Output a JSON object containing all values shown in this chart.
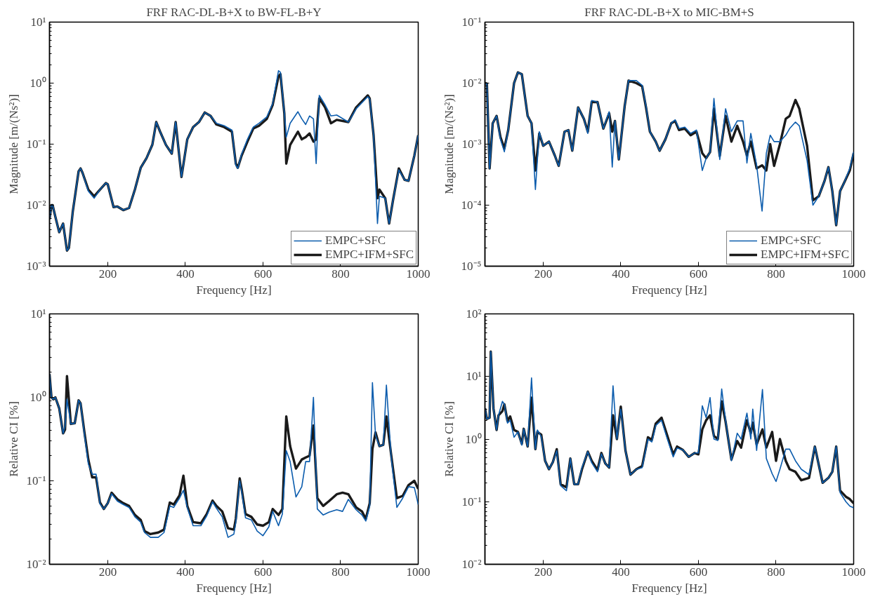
{
  "chart_data": [
    {
      "type": "line",
      "title": "FRF RAC-DL-B+X to BW-FL-B+Y",
      "xlabel": "Frequency [Hz]",
      "ylabel": "Magnitude [m/(Ns²)]",
      "log": "y",
      "legend": "bottom right",
      "xlim": [
        50,
        1000
      ],
      "xticks": [
        200,
        400,
        600,
        800,
        1000
      ],
      "ylim": [
        0.001,
        10
      ],
      "yticks": [
        {
          "value": 0.001,
          "label": "10⁻³"
        },
        {
          "value": 0.01,
          "label": "10⁻²"
        },
        {
          "value": 0.1,
          "label": "10⁻¹"
        },
        {
          "value": 1,
          "label": "10⁰"
        },
        {
          "value": 10,
          "label": "10¹"
        }
      ],
      "x": [
        50,
        55,
        58,
        65,
        75,
        85,
        95,
        100,
        110,
        125,
        130,
        135,
        150,
        165,
        180,
        195,
        200,
        215,
        225,
        240,
        255,
        270,
        285,
        300,
        315,
        325,
        335,
        350,
        365,
        375,
        390,
        405,
        420,
        435,
        450,
        465,
        480,
        500,
        520,
        530,
        535,
        545,
        560,
        575,
        590,
        610,
        625,
        640,
        645,
        655,
        660,
        670,
        690,
        700,
        710,
        720,
        730,
        737,
        745,
        760,
        775,
        790,
        820,
        840,
        870,
        875,
        885,
        895,
        900,
        915,
        925,
        935,
        950,
        965,
        975,
        990,
        1000
      ],
      "series": [
        {
          "name": "EMPC+SFC",
          "color": "#0b5cad",
          "values": [
            0.0059,
            0.01,
            0.01,
            0.0065,
            0.0036,
            0.005,
            0.0018,
            0.002,
            0.0079,
            0.036,
            0.04,
            0.034,
            0.017,
            0.013,
            0.018,
            0.023,
            0.022,
            0.0093,
            0.0095,
            0.0083,
            0.009,
            0.018,
            0.041,
            0.059,
            0.098,
            0.23,
            0.16,
            0.097,
            0.07,
            0.23,
            0.029,
            0.12,
            0.19,
            0.23,
            0.33,
            0.29,
            0.22,
            0.2,
            0.17,
            0.045,
            0.04,
            0.068,
            0.12,
            0.19,
            0.22,
            0.28,
            0.46,
            1.6,
            1.5,
            0.33,
            0.13,
            0.22,
            0.34,
            0.26,
            0.21,
            0.29,
            0.26,
            0.048,
            0.63,
            0.44,
            0.29,
            0.3,
            0.23,
            0.38,
            0.6,
            0.55,
            0.14,
            0.005,
            0.014,
            0.013,
            0.005,
            0.012,
            0.038,
            0.026,
            0.025,
            0.065,
            0.14
          ]
        },
        {
          "name": "EMPC+IFM+SFC",
          "color": "#1a1a1a",
          "values": [
            0.0059,
            0.01,
            0.01,
            0.0065,
            0.0036,
            0.005,
            0.0018,
            0.002,
            0.0079,
            0.036,
            0.04,
            0.034,
            0.018,
            0.014,
            0.018,
            0.023,
            0.022,
            0.0093,
            0.0095,
            0.0083,
            0.009,
            0.018,
            0.041,
            0.059,
            0.098,
            0.23,
            0.16,
            0.097,
            0.07,
            0.23,
            0.029,
            0.12,
            0.19,
            0.23,
            0.33,
            0.29,
            0.21,
            0.19,
            0.16,
            0.048,
            0.041,
            0.065,
            0.11,
            0.18,
            0.2,
            0.26,
            0.44,
            1.3,
            1.4,
            0.32,
            0.048,
            0.097,
            0.16,
            0.12,
            0.13,
            0.15,
            0.11,
            0.12,
            0.56,
            0.4,
            0.22,
            0.25,
            0.23,
            0.4,
            0.63,
            0.56,
            0.14,
            0.013,
            0.018,
            0.013,
            0.005,
            0.012,
            0.04,
            0.026,
            0.025,
            0.065,
            0.14
          ]
        }
      ]
    },
    {
      "type": "line",
      "title": "FRF RAC-DL-B+X to MIC-BM+S",
      "xlabel": "Frequency [Hz]",
      "ylabel": "Magnitude [m/(Ns²)]",
      "log": "y",
      "legend": "bottom right",
      "xlim": [
        50,
        1000
      ],
      "xticks": [
        200,
        400,
        600,
        800,
        1000
      ],
      "ylim": [
        1e-05,
        0.1
      ],
      "yticks": [
        {
          "value": 1e-05,
          "label": "10⁻⁵"
        },
        {
          "value": 0.0001,
          "label": "10⁻⁴"
        },
        {
          "value": 0.001,
          "label": "10⁻³"
        },
        {
          "value": 0.01,
          "label": "10⁻²"
        },
        {
          "value": 0.1,
          "label": "10⁻¹"
        }
      ],
      "x": [
        50,
        55,
        62,
        70,
        80,
        90,
        100,
        110,
        125,
        135,
        145,
        160,
        170,
        180,
        190,
        200,
        215,
        230,
        240,
        255,
        265,
        275,
        290,
        305,
        315,
        325,
        340,
        355,
        370,
        378,
        385,
        395,
        410,
        420,
        440,
        455,
        465,
        475,
        490,
        500,
        515,
        530,
        540,
        550,
        565,
        580,
        595,
        610,
        620,
        630,
        640,
        655,
        670,
        685,
        700,
        715,
        725,
        735,
        750,
        764,
        775,
        785,
        795,
        810,
        825,
        835,
        850,
        860,
        880,
        895,
        910,
        925,
        935,
        945,
        955,
        965,
        975,
        990,
        1000
      ],
      "series": [
        {
          "name": "EMPC+SFC",
          "color": "#0b5cad",
          "values": [
            0.01,
            0.0098,
            0.0004,
            0.0022,
            0.0029,
            0.0012,
            0.00075,
            0.0017,
            0.01,
            0.015,
            0.014,
            0.0029,
            0.0022,
            0.00018,
            0.0016,
            0.00094,
            0.0011,
            0.00065,
            0.00044,
            0.0016,
            0.0017,
            0.00078,
            0.004,
            0.0026,
            0.0015,
            0.0052,
            0.0049,
            0.0018,
            0.0034,
            0.00042,
            0.0024,
            0.00056,
            0.0042,
            0.011,
            0.011,
            0.0092,
            0.0042,
            0.0016,
            0.0011,
            0.00078,
            0.0012,
            0.0022,
            0.0025,
            0.0018,
            0.0019,
            0.0015,
            0.0017,
            0.00037,
            0.00059,
            0.00074,
            0.0056,
            0.00056,
            0.0038,
            0.0016,
            0.0024,
            0.0024,
            0.00049,
            0.0015,
            0.00045,
            8e-05,
            0.00071,
            0.0014,
            0.0011,
            0.0011,
            0.0014,
            0.0018,
            0.0023,
            0.002,
            0.00054,
            0.0001,
            0.00014,
            0.00025,
            0.00042,
            0.00017,
            4.7e-05,
            0.00017,
            0.00023,
            0.0004,
            0.00075
          ]
        },
        {
          "name": "EMPC+IFM+SFC",
          "color": "#1a1a1a",
          "values": [
            0.01,
            0.0098,
            0.0004,
            0.0022,
            0.0029,
            0.0013,
            0.00085,
            0.0017,
            0.01,
            0.015,
            0.014,
            0.0029,
            0.0022,
            0.00037,
            0.0015,
            0.00094,
            0.0011,
            0.00065,
            0.00044,
            0.0016,
            0.0017,
            0.00078,
            0.004,
            0.0026,
            0.0016,
            0.0049,
            0.0049,
            0.0018,
            0.0032,
            0.0016,
            0.0024,
            0.00056,
            0.0042,
            0.011,
            0.01,
            0.0089,
            0.004,
            0.0016,
            0.0011,
            0.00078,
            0.0012,
            0.0022,
            0.0024,
            0.0017,
            0.0018,
            0.0014,
            0.0016,
            0.00071,
            0.00059,
            0.00074,
            0.0038,
            0.00064,
            0.0029,
            0.0011,
            0.002,
            0.0011,
            0.00065,
            0.0011,
            0.0004,
            0.00045,
            0.00037,
            0.001,
            0.00044,
            0.001,
            0.0026,
            0.0029,
            0.0053,
            0.0038,
            0.00094,
            0.00012,
            0.00014,
            0.00025,
            0.00042,
            0.00017,
            4.7e-05,
            0.00017,
            0.00023,
            0.00037,
            0.00071
          ]
        }
      ]
    },
    {
      "type": "line",
      "xlabel": "Frequency [Hz]",
      "ylabel": "Relative CI [%]",
      "log": "y",
      "xlim": [
        50,
        1000
      ],
      "xticks": [
        200,
        400,
        600,
        800,
        1000
      ],
      "ylim": [
        0.01,
        10
      ],
      "yticks": [
        {
          "value": 0.01,
          "label": "10⁻²"
        },
        {
          "value": 0.1,
          "label": "10⁻¹"
        },
        {
          "value": 1,
          "label": "10⁰"
        },
        {
          "value": 10,
          "label": "10¹"
        }
      ],
      "x": [
        50,
        55,
        60,
        65,
        75,
        85,
        90,
        95,
        105,
        115,
        125,
        130,
        140,
        150,
        160,
        170,
        180,
        190,
        200,
        210,
        225,
        240,
        255,
        270,
        285,
        295,
        310,
        330,
        345,
        360,
        370,
        385,
        395,
        405,
        420,
        440,
        455,
        470,
        480,
        495,
        510,
        525,
        530,
        540,
        545,
        555,
        570,
        585,
        600,
        615,
        625,
        640,
        650,
        660,
        670,
        685,
        700,
        710,
        720,
        730,
        740,
        755,
        770,
        790,
        805,
        820,
        840,
        855,
        865,
        875,
        882,
        890,
        900,
        910,
        918,
        930,
        945,
        960,
        975,
        990,
        1000
      ],
      "series": [
        {
          "color": "#0b5cad",
          "values": [
            1.9,
            1.0,
            0.95,
            1.0,
            0.74,
            0.37,
            0.45,
            0.95,
            0.48,
            0.49,
            0.92,
            0.85,
            0.36,
            0.16,
            0.12,
            0.12,
            0.053,
            0.046,
            0.054,
            0.07,
            0.057,
            0.052,
            0.048,
            0.037,
            0.032,
            0.024,
            0.021,
            0.021,
            0.024,
            0.05,
            0.048,
            0.062,
            0.077,
            0.048,
            0.029,
            0.029,
            0.038,
            0.056,
            0.047,
            0.037,
            0.021,
            0.023,
            0.032,
            0.1,
            0.075,
            0.036,
            0.034,
            0.025,
            0.022,
            0.028,
            0.043,
            0.029,
            0.04,
            0.23,
            0.17,
            0.064,
            0.085,
            0.17,
            0.17,
            1.0,
            0.046,
            0.039,
            0.042,
            0.045,
            0.043,
            0.06,
            0.045,
            0.039,
            0.033,
            0.05,
            1.5,
            0.35,
            0.26,
            0.27,
            1.4,
            0.2,
            0.048,
            0.062,
            0.085,
            0.083,
            0.052
          ]
        },
        {
          "color": "#1a1a1a",
          "values": [
            1.9,
            1.0,
            0.95,
            1.0,
            0.74,
            0.37,
            0.41,
            1.8,
            0.48,
            0.49,
            0.92,
            0.85,
            0.38,
            0.18,
            0.11,
            0.11,
            0.055,
            0.046,
            0.054,
            0.072,
            0.06,
            0.054,
            0.05,
            0.039,
            0.034,
            0.025,
            0.023,
            0.024,
            0.026,
            0.055,
            0.052,
            0.067,
            0.115,
            0.05,
            0.032,
            0.031,
            0.04,
            0.058,
            0.05,
            0.043,
            0.027,
            0.026,
            0.035,
            0.107,
            0.08,
            0.04,
            0.037,
            0.03,
            0.029,
            0.032,
            0.046,
            0.039,
            0.046,
            0.59,
            0.26,
            0.14,
            0.18,
            0.19,
            0.2,
            0.46,
            0.062,
            0.05,
            0.057,
            0.069,
            0.072,
            0.069,
            0.048,
            0.043,
            0.035,
            0.054,
            0.24,
            0.38,
            0.26,
            0.27,
            0.59,
            0.21,
            0.062,
            0.066,
            0.089,
            0.1,
            0.08
          ]
        }
      ]
    },
    {
      "type": "line",
      "xlabel": "Frequency [Hz]",
      "ylabel": "Relative CI [%]",
      "log": "y",
      "xlim": [
        50,
        1000
      ],
      "xticks": [
        200,
        400,
        600,
        800,
        1000
      ],
      "ylim": [
        0.01,
        100
      ],
      "yticks": [
        {
          "value": 0.01,
          "label": "10⁻²"
        },
        {
          "value": 0.1,
          "label": "10⁻¹"
        },
        {
          "value": 1,
          "label": "10⁰"
        },
        {
          "value": 10,
          "label": "10¹"
        },
        {
          "value": 100,
          "label": "10²"
        }
      ],
      "x": [
        50,
        55,
        62,
        65,
        72,
        80,
        85,
        95,
        100,
        108,
        115,
        125,
        135,
        145,
        150,
        160,
        170,
        180,
        185,
        195,
        205,
        215,
        225,
        235,
        245,
        260,
        270,
        280,
        290,
        300,
        315,
        325,
        340,
        350,
        360,
        370,
        380,
        390,
        400,
        412,
        425,
        440,
        455,
        470,
        480,
        490,
        505,
        520,
        535,
        545,
        560,
        575,
        590,
        600,
        610,
        620,
        630,
        640,
        650,
        660,
        670,
        685,
        700,
        710,
        725,
        735,
        740,
        750,
        765,
        775,
        790,
        800,
        810,
        825,
        835,
        850,
        865,
        885,
        900,
        920,
        935,
        945,
        955,
        965,
        980,
        990,
        1000
      ],
      "series": [
        {
          "color": "#0b5cad",
          "values": [
            3.1,
            2.1,
            2.2,
            25,
            3.1,
            1.4,
            2.4,
            4.0,
            3.6,
            1.8,
            2.0,
            1.07,
            1.3,
            0.8,
            1.46,
            0.76,
            9.5,
            0.69,
            1.4,
            1.1,
            0.45,
            0.33,
            0.43,
            0.65,
            0.18,
            0.15,
            0.49,
            0.19,
            0.19,
            0.35,
            0.63,
            0.42,
            0.3,
            0.58,
            0.41,
            0.35,
            7.1,
            1.0,
            3.0,
            0.66,
            0.27,
            0.33,
            0.35,
            1.0,
            0.9,
            1.65,
            2.0,
            1.0,
            0.52,
            0.72,
            0.67,
            0.52,
            0.6,
            0.6,
            3.4,
            2.2,
            4.6,
            1.0,
            0.95,
            6.3,
            2.0,
            0.45,
            1.24,
            1.0,
            2.6,
            1.0,
            3.0,
            0.66,
            6.2,
            0.49,
            0.28,
            0.21,
            0.33,
            0.69,
            0.69,
            0.45,
            0.33,
            0.27,
            0.76,
            0.2,
            0.24,
            0.3,
            0.76,
            0.14,
            0.1,
            0.085,
            0.08
          ]
        },
        {
          "color": "#1a1a1a",
          "values": [
            3.1,
            2.1,
            2.2,
            25,
            3.1,
            1.4,
            2.4,
            2.8,
            3.6,
            1.95,
            2.3,
            1.4,
            1.3,
            0.84,
            1.46,
            0.76,
            4.6,
            0.69,
            1.3,
            1.18,
            0.45,
            0.33,
            0.43,
            0.69,
            0.19,
            0.17,
            0.49,
            0.19,
            0.19,
            0.33,
            0.63,
            0.45,
            0.32,
            0.6,
            0.41,
            0.35,
            2.4,
            1.0,
            3.3,
            0.66,
            0.27,
            0.33,
            0.37,
            1.07,
            0.97,
            1.77,
            2.2,
            1.12,
            0.57,
            0.76,
            0.67,
            0.52,
            0.6,
            0.57,
            1.43,
            2.0,
            2.4,
            1.12,
            1.0,
            4.0,
            1.9,
            0.47,
            0.93,
            0.73,
            2.0,
            1.24,
            1.83,
            0.82,
            1.43,
            0.73,
            1.3,
            0.45,
            1.0,
            0.45,
            0.33,
            0.3,
            0.22,
            0.24,
            0.76,
            0.2,
            0.24,
            0.3,
            0.76,
            0.15,
            0.12,
            0.11,
            0.094
          ]
        }
      ]
    }
  ]
}
